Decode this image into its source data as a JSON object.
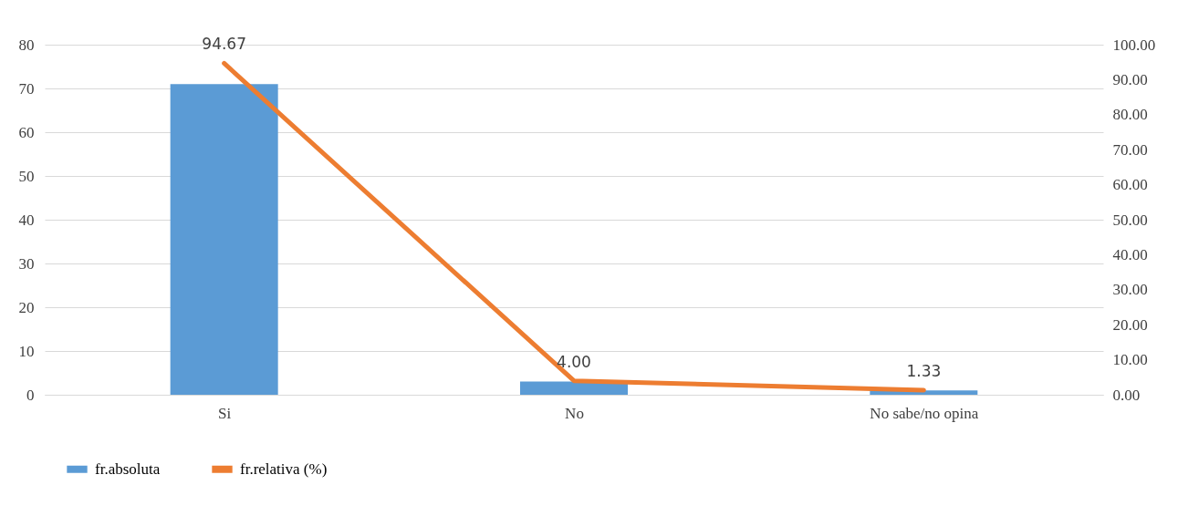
{
  "chart_data": {
    "type": "bar",
    "categories": [
      "Si",
      "No",
      "No sabe/no opina"
    ],
    "series": [
      {
        "name": "fr.absoluta",
        "type": "bar",
        "color": "#5b9bd5",
        "values": [
          71,
          3,
          1
        ]
      },
      {
        "name": "fr.relativa (%)",
        "type": "line",
        "axis": "y2",
        "color": "#ed7d31",
        "values": [
          94.67,
          4.0,
          1.33
        ],
        "value_labels": [
          "94.67",
          "4.00",
          "1.33"
        ]
      }
    ],
    "ylim": [
      0,
      80
    ],
    "yticks": [
      0,
      10,
      20,
      30,
      40,
      50,
      60,
      70,
      80
    ],
    "y2lim": [
      0,
      100
    ],
    "y2ticks": [
      {
        "value": 0,
        "label": "0.00"
      },
      {
        "value": 10,
        "label": "10.00"
      },
      {
        "value": 20,
        "label": "20.00"
      },
      {
        "value": 30,
        "label": "30.00"
      },
      {
        "value": 40,
        "label": "40.00"
      },
      {
        "value": 50,
        "label": "50.00"
      },
      {
        "value": 60,
        "label": "60.00"
      },
      {
        "value": 70,
        "label": "70.00"
      },
      {
        "value": 80,
        "label": "80.00"
      },
      {
        "value": 90,
        "label": "90.00"
      },
      {
        "value": 100,
        "label": "100.00"
      }
    ],
    "grid": "y",
    "legend": "bottom",
    "marker": "none",
    "line_style": "solid"
  }
}
